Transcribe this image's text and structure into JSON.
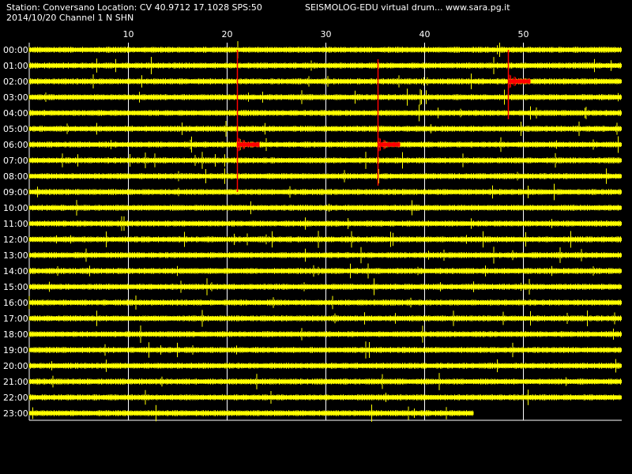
{
  "header": {
    "station_line": "Station: Conversano Location: CV 40.9712 17.1028 SPS:50",
    "date_line": "2014/10/20  Channel 1 N SHN",
    "credit": "SEISMOLOG-EDU virtual drum... www.sara.pg.it"
  },
  "colors": {
    "background": "#000000",
    "trace": "#ffff00",
    "event": "#ff0000",
    "grid": "#ffffff",
    "text": "#ffffff"
  },
  "chart_data": {
    "type": "line",
    "title": "",
    "xlabel": "",
    "ylabel": "",
    "x_unit": "minutes",
    "xlim": [
      0,
      60
    ],
    "x_ticks": [
      10,
      20,
      30,
      40,
      50
    ],
    "grid": true,
    "rows": [
      "00:00",
      "01:00",
      "02:00",
      "03:00",
      "04:00",
      "05:00",
      "06:00",
      "07:00",
      "08:00",
      "09:00",
      "10:00",
      "11:00",
      "12:00",
      "13:00",
      "14:00",
      "15:00",
      "16:00",
      "17:00",
      "18:00",
      "19:00",
      "20:00",
      "21:00",
      "22:00",
      "23:00"
    ],
    "last_row_end_minute": 45,
    "events": [
      {
        "hour": 6,
        "minute": 21.0,
        "marker_from_hour": 0,
        "marker_to_hour": 9
      },
      {
        "hour": 6,
        "minute": 35.3,
        "marker_from_hour": 0.6,
        "marker_to_hour": 8.6
      },
      {
        "hour": 2,
        "minute": 48.5,
        "marker_from_hour": 0,
        "marker_to_hour": 4.4
      }
    ]
  }
}
